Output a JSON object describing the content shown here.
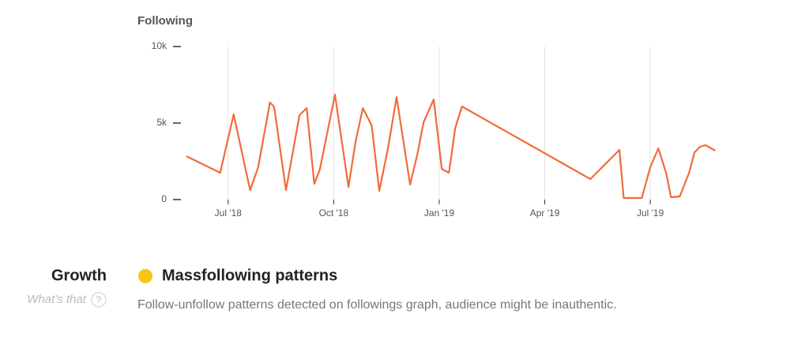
{
  "chart_data": {
    "type": "line",
    "title": "Following",
    "x": [
      2018.401,
      2018.481,
      2018.513,
      2018.552,
      2018.571,
      2018.599,
      2018.605,
      2018.609,
      2018.637,
      2018.669,
      2018.686,
      2018.704,
      2018.717,
      2018.753,
      2018.785,
      2018.802,
      2018.819,
      2018.84,
      2018.858,
      2018.879,
      2018.899,
      2018.931,
      2018.948,
      2018.963,
      2018.987,
      2019.006,
      2019.023,
      2019.038,
      2019.054,
      2019.358,
      2019.427,
      2019.437,
      2019.48,
      2019.5,
      2019.519,
      2019.538,
      2019.549,
      2019.57,
      2019.592,
      2019.605,
      2019.618,
      2019.631,
      2019.654
    ],
    "series": [
      {
        "name": "Following",
        "color": "#f26b3a",
        "values": [
          2835,
          1753,
          5567,
          619,
          2113,
          6340,
          6186,
          6031,
          619,
          5515,
          5979,
          1031,
          1959,
          6856,
          825,
          3814,
          5979,
          4845,
          567,
          3402,
          6701,
          979,
          2938,
          5052,
          6546,
          2010,
          1753,
          4691,
          6082,
          1340,
          3247,
          103,
          103,
          2113,
          3351,
          1701,
          155,
          206,
          1753,
          3093,
          3454,
          3557,
          3196
        ]
      }
    ],
    "xlim": [
      2018.388,
      2019.657
    ],
    "xticks": [
      {
        "value": 2018.5,
        "label": "Jul '18"
      },
      {
        "value": 2018.75,
        "label": "Oct '18"
      },
      {
        "value": 2019.0,
        "label": "Jan '19"
      },
      {
        "value": 2019.25,
        "label": "Apr '19"
      },
      {
        "value": 2019.5,
        "label": "Jul '19"
      }
    ],
    "ylim": [
      0,
      10000
    ],
    "yticks": [
      {
        "value": 0,
        "label": "0"
      },
      {
        "value": 5000,
        "label": "5k"
      },
      {
        "value": 10000,
        "label": "10k"
      }
    ],
    "grid": true
  },
  "growth": {
    "label": "Growth",
    "help": "What’s that",
    "help_icon": "?",
    "status": "Massfollowing patterns",
    "status_color": "#f5c518",
    "description": "Follow-unfollow patterns detected on followings graph, audience might be inauthentic."
  }
}
